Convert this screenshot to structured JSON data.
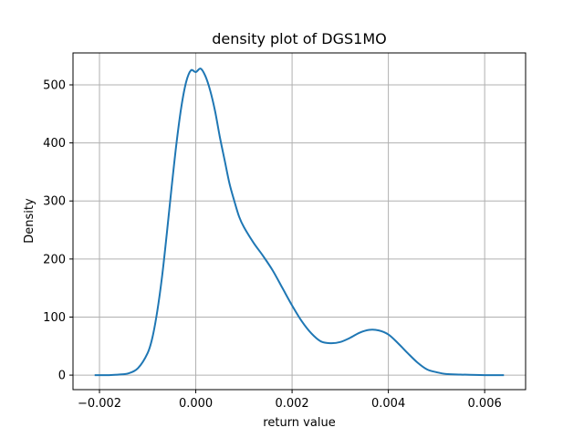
{
  "chart_data": {
    "type": "line",
    "title": "density plot of DGS1MO",
    "xlabel": "return value",
    "ylabel": "Density",
    "xlim": [
      -0.00255,
      0.00685
    ],
    "ylim": [
      -25,
      555
    ],
    "grid": true,
    "x_ticks": [
      -0.002,
      0.0,
      0.002,
      0.004,
      0.006
    ],
    "x_tick_labels": [
      "−0.002",
      "0.000",
      "0.002",
      "0.004",
      "0.006"
    ],
    "y_ticks": [
      0,
      100,
      200,
      300,
      400,
      500
    ],
    "y_tick_labels": [
      "0",
      "100",
      "200",
      "300",
      "400",
      "500"
    ],
    "series": [
      {
        "color": "#1f77b4",
        "x": [
          -0.0021,
          -0.0018,
          -0.0016,
          -0.0014,
          -0.0012,
          -0.001,
          -0.0009,
          -0.0008,
          -0.0007,
          -0.0006,
          -0.0005,
          -0.0004,
          -0.0003,
          -0.0002,
          -0.0001,
          0.0,
          0.0001,
          0.0002,
          0.0003,
          0.0004,
          0.0005,
          0.0006,
          0.0007,
          0.0008,
          0.0009,
          0.001,
          0.0012,
          0.0014,
          0.0016,
          0.0018,
          0.002,
          0.0022,
          0.0024,
          0.0026,
          0.0028,
          0.003,
          0.0032,
          0.0034,
          0.0036,
          0.0038,
          0.004,
          0.0042,
          0.0044,
          0.0046,
          0.0048,
          0.005,
          0.0052,
          0.0055,
          0.006,
          0.0064
        ],
        "values": [
          0,
          0,
          1,
          3,
          12,
          38,
          65,
          110,
          170,
          245,
          325,
          400,
          462,
          505,
          525,
          522,
          528,
          515,
          490,
          455,
          410,
          370,
          330,
          300,
          273,
          255,
          228,
          205,
          180,
          150,
          120,
          93,
          72,
          58,
          55,
          57,
          64,
          73,
          78,
          77,
          70,
          55,
          38,
          22,
          10,
          5,
          2,
          1,
          0,
          0
        ]
      }
    ]
  }
}
